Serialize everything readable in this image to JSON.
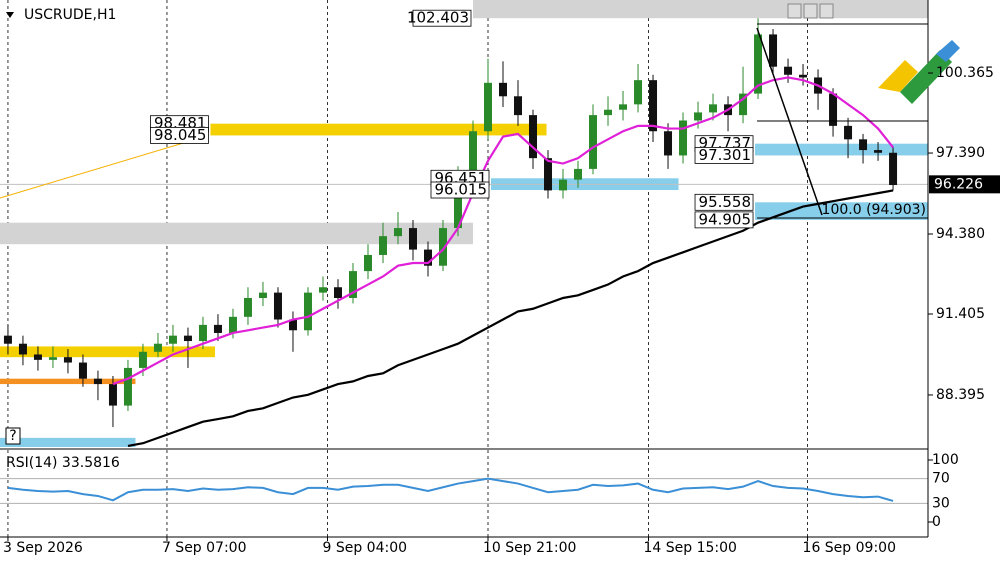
{
  "chart_data": [
    {
      "type": "candlestick",
      "title": "USCRUDE,H1",
      "open": [
        90.6,
        90.3,
        89.9,
        89.7,
        89.8,
        89.6,
        89.0,
        88.8,
        88.0,
        89.4,
        90.0,
        90.3,
        90.6,
        90.4,
        91.0,
        90.7,
        91.3,
        92.0,
        92.2,
        91.2,
        90.8,
        92.2,
        92.4,
        92.0,
        93.0,
        93.6,
        94.3,
        94.6,
        93.8,
        93.2,
        94.6,
        96.4,
        98.2,
        100.0,
        99.5,
        98.8,
        97.2,
        96.0,
        96.4,
        96.8,
        98.8,
        99.0,
        99.2,
        100.1,
        98.2,
        97.3,
        98.6,
        98.9,
        99.2,
        98.8,
        99.6,
        101.8,
        100.6,
        100.3,
        100.2,
        99.6,
        98.4,
        97.9,
        97.5,
        97.4
      ],
      "high": [
        91.0,
        90.6,
        90.2,
        90.2,
        90.1,
        89.9,
        89.3,
        89.1,
        89.7,
        90.3,
        90.7,
        91.0,
        90.9,
        91.3,
        91.4,
        91.6,
        92.4,
        92.6,
        92.4,
        91.5,
        92.4,
        92.8,
        92.7,
        93.3,
        94.0,
        94.8,
        95.2,
        94.9,
        94.1,
        94.9,
        96.9,
        98.6,
        100.9,
        100.8,
        100.1,
        99.0,
        97.5,
        96.8,
        97.1,
        99.2,
        99.5,
        99.7,
        100.7,
        100.3,
        98.5,
        98.9,
        99.3,
        99.6,
        99.5,
        100.6,
        102.4,
        102.0,
        100.9,
        100.7,
        100.5,
        99.8,
        98.7,
        98.1,
        97.8,
        97.6
      ],
      "low": [
        89.9,
        89.5,
        89.3,
        89.4,
        89.2,
        88.7,
        88.2,
        87.2,
        87.8,
        89.1,
        89.8,
        90.0,
        89.4,
        90.1,
        90.4,
        90.5,
        91.0,
        91.7,
        90.9,
        90.0,
        90.6,
        91.9,
        91.6,
        91.8,
        92.7,
        93.3,
        94.0,
        93.4,
        92.8,
        93.0,
        94.3,
        96.1,
        97.9,
        99.1,
        98.4,
        96.8,
        95.7,
        95.7,
        96.1,
        96.6,
        98.4,
        98.6,
        98.9,
        97.8,
        96.8,
        97.0,
        98.3,
        98.6,
        98.2,
        98.5,
        99.4,
        100.3,
        100.0,
        99.9,
        99.0,
        98.0,
        97.2,
        97.0,
        97.1,
        96.0
      ],
      "close": [
        90.3,
        89.9,
        89.7,
        89.8,
        89.6,
        89.0,
        88.8,
        88.0,
        89.4,
        90.0,
        90.3,
        90.6,
        90.4,
        91.0,
        90.7,
        91.3,
        92.0,
        92.2,
        91.2,
        90.8,
        92.2,
        92.4,
        92.0,
        93.0,
        93.6,
        94.3,
        94.6,
        93.8,
        93.2,
        94.6,
        96.4,
        98.2,
        100.0,
        99.5,
        98.8,
        97.2,
        96.0,
        96.4,
        96.8,
        98.8,
        99.0,
        99.2,
        100.1,
        98.2,
        97.3,
        98.6,
        98.9,
        99.2,
        98.8,
        99.6,
        101.8,
        100.6,
        100.3,
        100.2,
        99.6,
        98.4,
        97.9,
        97.5,
        97.4,
        96.2
      ],
      "bull_color": "#2a8a2a",
      "bear_color": "#111111",
      "series": [
        {
          "color": "#e020d8",
          "values": [
            null,
            null,
            null,
            null,
            null,
            null,
            null,
            88.8,
            89.0,
            89.3,
            89.6,
            89.9,
            90.1,
            90.3,
            90.5,
            90.7,
            90.8,
            90.9,
            91.0,
            91.2,
            91.3,
            91.6,
            91.9,
            92.2,
            92.5,
            92.8,
            93.2,
            93.3,
            93.3,
            93.8,
            94.6,
            95.9,
            97.1,
            98.0,
            98.1,
            97.6,
            97.1,
            97.0,
            97.2,
            97.6,
            97.9,
            98.2,
            98.4,
            98.4,
            98.3,
            98.3,
            98.5,
            98.7,
            99.0,
            99.4,
            99.9,
            100.1,
            100.2,
            100.1,
            99.9,
            99.6,
            99.2,
            98.8,
            98.3,
            97.6
          ]
        },
        {
          "color": "#000000",
          "values": [
            null,
            null,
            null,
            null,
            null,
            null,
            null,
            null,
            86.5,
            86.6,
            86.8,
            87.0,
            87.2,
            87.4,
            87.5,
            87.6,
            87.8,
            87.9,
            88.1,
            88.3,
            88.4,
            88.6,
            88.8,
            88.9,
            89.1,
            89.2,
            89.5,
            89.7,
            89.9,
            90.1,
            90.3,
            90.6,
            90.9,
            91.2,
            91.5,
            91.6,
            91.8,
            92.0,
            92.1,
            92.3,
            92.5,
            92.8,
            93.0,
            93.3,
            93.5,
            93.7,
            93.9,
            94.1,
            94.3,
            94.5,
            94.8,
            95.0,
            95.2,
            95.4,
            95.5,
            95.6,
            95.7,
            95.8,
            95.9,
            96.0
          ]
        }
      ],
      "zones": [
        {
          "low": 102.403,
          "high": 103.08,
          "start": 31,
          "end": 61.33,
          "color": "#d3d3d3",
          "labels": true
        },
        {
          "low": 98.045,
          "high": 98.481,
          "start": 13.5,
          "end": 35.9,
          "color": "#f5d000",
          "labels": true
        },
        {
          "low": 96.015,
          "high": 96.451,
          "start": 32.2,
          "end": 44.7,
          "color": "#87ceeb",
          "labels": true
        },
        {
          "low": 97.301,
          "high": 97.737,
          "start": 49.8,
          "end": 61.33,
          "color": "#87ceeb",
          "labels": true
        },
        {
          "low": 94.905,
          "high": 95.558,
          "start": 49.8,
          "end": 61.33,
          "color": "#87ceeb",
          "labels": true
        },
        {
          "low": 94.0,
          "high": 94.8,
          "start": -0.53,
          "end": 31,
          "color": "#d3d3d3",
          "labels": false
        },
        {
          "low": 89.8,
          "high": 90.2,
          "start": -0.53,
          "end": 13.8,
          "color": "#f5d000",
          "labels": false
        },
        {
          "low": 88.8,
          "high": 89.0,
          "start": -0.53,
          "end": 8.5,
          "color": "#f39020",
          "labels": false
        },
        {
          "low": 86.46,
          "high": 86.8,
          "start": -0.53,
          "end": 8.5,
          "color": "#87ceeb",
          "labels": false
        }
      ],
      "fib_label": "100.0 (94.903)",
      "marker": "?",
      "last_price": 96.226,
      "xlim": [
        -0.53,
        61.33
      ],
      "xticks": [
        {
          "value": 0,
          "label": "3 Sep 2026"
        },
        {
          "value": 10.6,
          "label": "7 Sep 07:00"
        },
        {
          "value": 21.3,
          "label": "9 Sep 04:00"
        },
        {
          "value": 32,
          "label": "10 Sep 21:00"
        },
        {
          "value": 42.7,
          "label": "14 Sep 15:00"
        },
        {
          "value": 53.3,
          "label": "16 Sep 09:00"
        }
      ],
      "ylim": [
        86.46,
        103.08
      ],
      "yticks": [
        100.365,
        {
          "value": 97.39,
          "label": "97.390"
        },
        {
          "value": 94.38,
          "label": "94.380"
        },
        91.405,
        88.395
      ]
    },
    {
      "type": "line",
      "title": "RSI(14) 33.5816",
      "color": "#3a8fd6",
      "values": [
        55,
        52,
        50,
        49,
        50,
        45,
        42,
        35,
        48,
        52,
        52,
        53,
        50,
        54,
        52,
        53,
        56,
        55,
        48,
        45,
        55,
        55,
        52,
        57,
        58,
        60,
        60,
        55,
        50,
        56,
        62,
        66,
        70,
        66,
        62,
        55,
        48,
        50,
        52,
        60,
        58,
        59,
        62,
        52,
        48,
        54,
        55,
        56,
        53,
        57,
        66,
        58,
        55,
        54,
        50,
        45,
        42,
        40,
        41,
        34
      ],
      "ylim": [
        0,
        100
      ],
      "yticks": [
        0,
        30,
        70,
        100
      ]
    }
  ]
}
